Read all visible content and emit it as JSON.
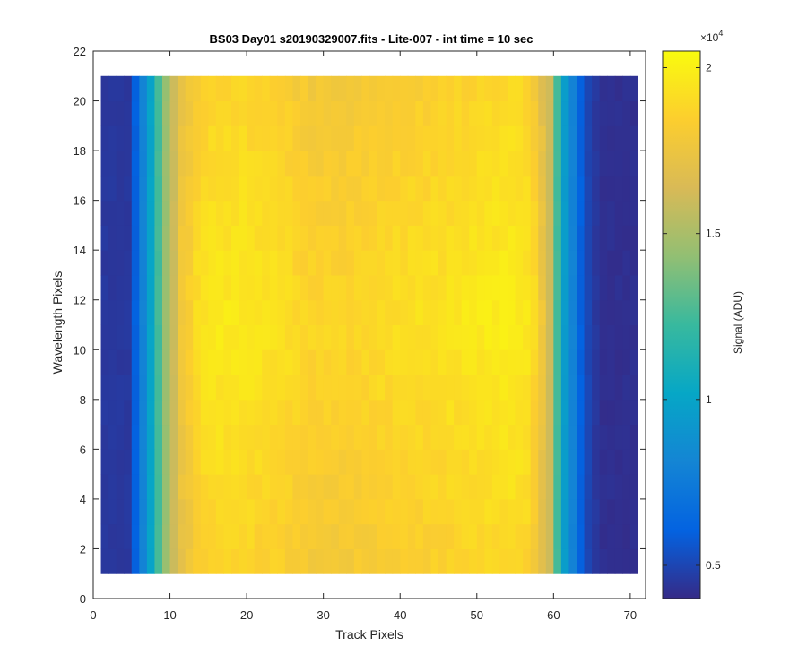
{
  "chart_data": {
    "type": "heatmap",
    "title": "BS03 Day01  s20190329007.fits - Lite-007 - int time = 10 sec",
    "xlabel": "Track Pixels",
    "ylabel": "Wavelength Pixels",
    "xlim": [
      0,
      72
    ],
    "ylim": [
      0,
      22
    ],
    "xticks": [
      0,
      10,
      20,
      30,
      40,
      50,
      60,
      70
    ],
    "yticks": [
      0,
      2,
      4,
      6,
      8,
      10,
      12,
      14,
      16,
      18,
      20,
      22
    ],
    "cells": {
      "x_range": [
        1,
        71
      ],
      "y_range": [
        1,
        21
      ]
    },
    "colorbar": {
      "label": "Signal (ADU)",
      "multiplier_base": "×10",
      "multiplier_exp": "4",
      "range": [
        0.4,
        2.05
      ],
      "ticks": [
        0.5,
        1,
        1.5,
        2
      ],
      "tick_labels": [
        "0.5",
        "1",
        "1.5",
        "2"
      ],
      "colormap": "parula"
    },
    "profile_values": [
      0.45,
      0.45,
      0.45,
      0.45,
      0.6,
      0.8,
      1.0,
      1.25,
      1.45,
      1.6,
      1.8,
      1.85,
      1.92,
      1.95,
      1.96,
      1.97,
      1.97,
      1.97,
      1.97,
      1.96,
      1.95,
      1.95,
      1.94,
      1.93,
      1.92,
      1.9,
      1.89,
      1.88,
      1.88,
      1.88,
      1.88,
      1.88,
      1.88,
      1.89,
      1.9,
      1.9,
      1.91,
      1.91,
      1.92,
      1.92,
      1.93,
      1.93,
      1.93,
      1.94,
      1.94,
      1.95,
      1.95,
      1.96,
      1.97,
      1.97,
      1.98,
      1.98,
      1.99,
      1.99,
      1.98,
      1.96,
      1.9,
      1.78,
      1.6,
      1.25,
      0.95,
      0.8,
      0.6,
      0.5,
      0.45,
      0.42,
      0.42,
      0.42,
      0.42,
      0.42,
      0.42
    ]
  }
}
